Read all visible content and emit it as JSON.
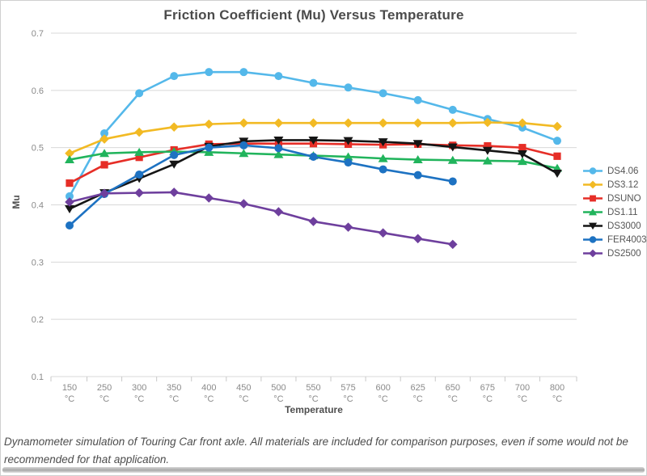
{
  "footer": {
    "note": "Dynamometer simulation of Touring Car front axle. All materials are included for comparison purposes, even if some would not be recommended for that application."
  },
  "chart_data": {
    "type": "line",
    "title": "Friction Coefficient (Mu) Versus Temperature",
    "xlabel": "Temperature",
    "ylabel": "Mu",
    "ylim": [
      0.1,
      0.7
    ],
    "ytick_step": 0.1,
    "grid": "horizontal",
    "legend_position": "right",
    "category_unit": "°C",
    "categories": [
      "150",
      "250",
      "300",
      "350",
      "400",
      "450",
      "500",
      "550",
      "575",
      "600",
      "625",
      "650",
      "675",
      "700",
      "800"
    ],
    "series": [
      {
        "name": "DS4.06",
        "color": "#54b8ea",
        "marker": "circle",
        "values": [
          0.415,
          0.525,
          0.595,
          0.625,
          0.632,
          0.632,
          0.625,
          0.613,
          0.605,
          0.595,
          0.583,
          0.566,
          0.55,
          0.535,
          0.512
        ]
      },
      {
        "name": "DS3.12",
        "color": "#f2ba24",
        "marker": "diamond",
        "values": [
          0.49,
          0.515,
          0.527,
          0.536,
          0.541,
          0.543,
          0.543,
          0.543,
          0.543,
          0.543,
          0.543,
          0.543,
          0.544,
          0.543,
          0.537
        ]
      },
      {
        "name": "DSUNO",
        "color": "#e62e27",
        "marker": "square",
        "values": [
          0.438,
          0.47,
          0.483,
          0.496,
          0.506,
          0.507,
          0.507,
          0.507,
          0.506,
          0.505,
          0.506,
          0.504,
          0.503,
          0.5,
          0.485
        ]
      },
      {
        "name": "DS1.11",
        "color": "#21b45c",
        "marker": "triangle-up",
        "values": [
          0.479,
          0.49,
          0.492,
          0.493,
          0.492,
          0.49,
          0.488,
          0.486,
          0.484,
          0.481,
          0.479,
          0.478,
          0.477,
          0.476,
          0.464
        ]
      },
      {
        "name": "DS3000",
        "color": "#151515",
        "marker": "triangle-down",
        "values": [
          0.393,
          0.421,
          0.446,
          0.471,
          0.502,
          0.511,
          0.513,
          0.513,
          0.512,
          0.51,
          0.507,
          0.501,
          0.495,
          0.489,
          0.455
        ]
      },
      {
        "name": "FER4003",
        "color": "#1d72c2",
        "marker": "circle",
        "values": [
          0.364,
          0.419,
          0.453,
          0.487,
          0.5,
          0.504,
          0.499,
          0.484,
          0.474,
          0.462,
          0.452,
          0.441,
          null,
          null,
          null
        ]
      },
      {
        "name": "DS2500",
        "color": "#6e3f9d",
        "marker": "diamond",
        "values": [
          0.405,
          0.42,
          0.421,
          0.422,
          0.412,
          0.402,
          0.388,
          0.371,
          0.361,
          0.351,
          0.341,
          0.331,
          null,
          null,
          null
        ]
      }
    ]
  }
}
